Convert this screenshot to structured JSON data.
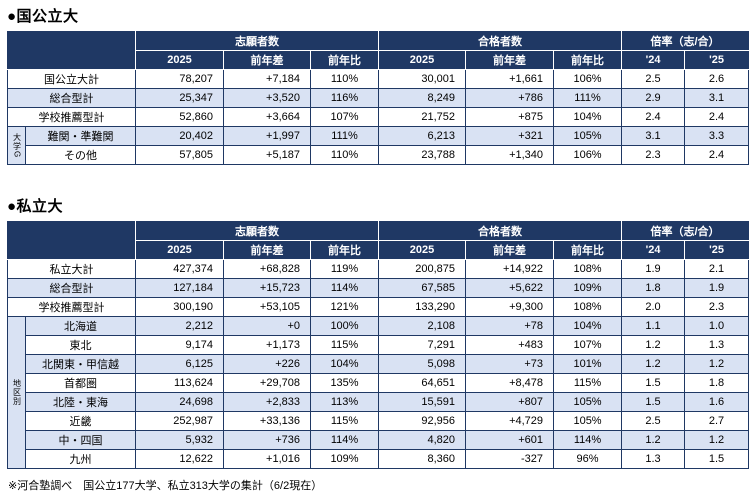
{
  "header": {
    "applicants": "志願者数",
    "accepted": "合格者数",
    "ratio": "倍率（志/合）",
    "sub": [
      "2025",
      "前年差",
      "前年比",
      "2025",
      "前年差",
      "前年比",
      "'24",
      "'25"
    ]
  },
  "colors": {
    "header_bg": "#1f3864",
    "header_text": "#ffffff",
    "alt_row_bg": "#d9e2f3",
    "border": "#1f3864"
  },
  "tables": [
    {
      "title": "●国公立大",
      "group": {
        "label": "大学G",
        "start": 3,
        "count": 2
      },
      "rows": [
        {
          "label": "国公立大計",
          "values": [
            "78,207",
            "+7,184",
            "110%",
            "30,001",
            "+1,661",
            "106%",
            "2.5",
            "2.6"
          ]
        },
        {
          "label": "総合型計",
          "values": [
            "25,347",
            "+3,520",
            "116%",
            "8,249",
            "+786",
            "111%",
            "2.9",
            "3.1"
          ]
        },
        {
          "label": "学校推薦型計",
          "values": [
            "52,860",
            "+3,664",
            "107%",
            "21,752",
            "+875",
            "104%",
            "2.4",
            "2.4"
          ]
        },
        {
          "label": "難関・準難関",
          "values": [
            "20,402",
            "+1,997",
            "111%",
            "6,213",
            "+321",
            "105%",
            "3.1",
            "3.3"
          ]
        },
        {
          "label": "その他",
          "values": [
            "57,805",
            "+5,187",
            "110%",
            "23,788",
            "+1,340",
            "106%",
            "2.3",
            "2.4"
          ]
        }
      ]
    },
    {
      "title": "●私立大",
      "group": {
        "label": "地区別",
        "start": 3,
        "count": 8
      },
      "rows": [
        {
          "label": "私立大計",
          "values": [
            "427,374",
            "+68,828",
            "119%",
            "200,875",
            "+14,922",
            "108%",
            "1.9",
            "2.1"
          ]
        },
        {
          "label": "総合型計",
          "values": [
            "127,184",
            "+15,723",
            "114%",
            "67,585",
            "+5,622",
            "109%",
            "1.8",
            "1.9"
          ]
        },
        {
          "label": "学校推薦型計",
          "values": [
            "300,190",
            "+53,105",
            "121%",
            "133,290",
            "+9,300",
            "108%",
            "2.0",
            "2.3"
          ]
        },
        {
          "label": "北海道",
          "values": [
            "2,212",
            "+0",
            "100%",
            "2,108",
            "+78",
            "104%",
            "1.1",
            "1.0"
          ]
        },
        {
          "label": "東北",
          "values": [
            "9,174",
            "+1,173",
            "115%",
            "7,291",
            "+483",
            "107%",
            "1.2",
            "1.3"
          ]
        },
        {
          "label": "北関東・甲信越",
          "values": [
            "6,125",
            "+226",
            "104%",
            "5,098",
            "+73",
            "101%",
            "1.2",
            "1.2"
          ]
        },
        {
          "label": "首都圏",
          "values": [
            "113,624",
            "+29,708",
            "135%",
            "64,651",
            "+8,478",
            "115%",
            "1.5",
            "1.8"
          ]
        },
        {
          "label": "北陸・東海",
          "values": [
            "24,698",
            "+2,833",
            "113%",
            "15,591",
            "+807",
            "105%",
            "1.5",
            "1.6"
          ]
        },
        {
          "label": "近畿",
          "values": [
            "252,987",
            "+33,136",
            "115%",
            "92,956",
            "+4,729",
            "105%",
            "2.5",
            "2.7"
          ]
        },
        {
          "label": "中・四国",
          "values": [
            "5,932",
            "+736",
            "114%",
            "4,820",
            "+601",
            "114%",
            "1.2",
            "1.2"
          ]
        },
        {
          "label": "九州",
          "values": [
            "12,622",
            "+1,016",
            "109%",
            "8,360",
            "-327",
            "96%",
            "1.3",
            "1.5"
          ]
        }
      ]
    }
  ],
  "footnote": "※河合塾調べ　国公立177大学、私立313大学の集計（6/2現在）"
}
